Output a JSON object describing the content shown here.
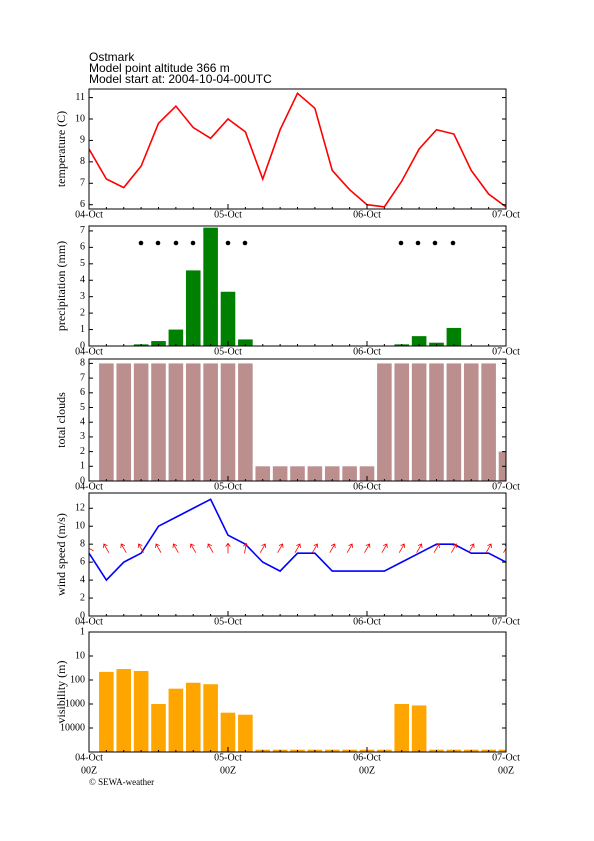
{
  "header": {
    "station": "Ostmark",
    "altitude": "Model point altitude  366 m",
    "model_start": "Model start at: 2004-10-04-00UTC"
  },
  "chart_data": [
    {
      "type": "line",
      "y_label": "temperature (C)",
      "categories": [
        "04-Oct",
        null,
        null,
        null,
        null,
        null,
        null,
        null,
        "05-Oct",
        null,
        null,
        null,
        null,
        null,
        null,
        null,
        "06-Oct",
        null,
        null,
        null,
        null,
        null,
        null,
        null,
        "07-Oct"
      ],
      "values": [
        8.6,
        7.2,
        6.8,
        7.8,
        9.8,
        10.6,
        9.6,
        9.1,
        10.0,
        9.4,
        7.2,
        9.5,
        11.2,
        10.5,
        7.6,
        6.7,
        6.0,
        5.9,
        7.1,
        8.6,
        9.5,
        9.3,
        7.6,
        6.5,
        5.9
      ],
      "color": "#ff0000",
      "ylim": [
        5.8,
        11.4
      ],
      "yticks": [
        6,
        7,
        8,
        9,
        10,
        11
      ]
    },
    {
      "type": "bar",
      "y_label": "precipitation (mm)",
      "categories": [
        "04-Oct",
        null,
        null,
        null,
        null,
        null,
        null,
        null,
        "05-Oct",
        null,
        null,
        null,
        null,
        null,
        null,
        null,
        "06-Oct",
        null,
        null,
        null,
        null,
        null,
        null,
        null,
        "07-Oct"
      ],
      "values": [
        0,
        0,
        0,
        0.1,
        0.3,
        1.0,
        4.6,
        7.2,
        3.3,
        0.4,
        0,
        0,
        0,
        0,
        0,
        0,
        0,
        0,
        0.1,
        0.6,
        0.2,
        1.1,
        0,
        0,
        0
      ],
      "color": "#008000",
      "ylim": [
        0,
        7.3
      ],
      "yticks": [
        0,
        1,
        2,
        3,
        4,
        5,
        6,
        7
      ]
    },
    {
      "type": "bar",
      "y_label": "total clouds",
      "categories": [
        "04-Oct",
        null,
        null,
        null,
        null,
        null,
        null,
        null,
        "05-Oct",
        null,
        null,
        null,
        null,
        null,
        null,
        null,
        "06-Oct",
        null,
        null,
        null,
        null,
        null,
        null,
        null,
        "07-Oct"
      ],
      "values": [
        0,
        8,
        8,
        8,
        8,
        8,
        8,
        8,
        8,
        8,
        1,
        1,
        1,
        1,
        1,
        1,
        1,
        8,
        8,
        8,
        8,
        8,
        8,
        8,
        2
      ],
      "color": "#bc8f8f",
      "ylim": [
        0,
        8.3
      ],
      "yticks": [
        0,
        1,
        2,
        3,
        4,
        5,
        6,
        7,
        8
      ]
    },
    {
      "type": "line",
      "y_label": "wind speed (m/s)",
      "categories": [
        "04-Oct",
        null,
        null,
        null,
        null,
        null,
        null,
        null,
        "05-Oct",
        null,
        null,
        null,
        null,
        null,
        null,
        null,
        "06-Oct",
        null,
        null,
        null,
        null,
        null,
        null,
        null,
        "07-Oct"
      ],
      "values": [
        7,
        4,
        6,
        7,
        10,
        11,
        12,
        13,
        9,
        8,
        6,
        5,
        7,
        7,
        5,
        5,
        5,
        5,
        6,
        7,
        8,
        8,
        7,
        7,
        6
      ],
      "color": "#0000ff",
      "ylim": [
        0,
        13.7
      ],
      "yticks": [
        0,
        2,
        4,
        6,
        8,
        10,
        12
      ],
      "wind_direction": [
        300,
        330,
        330,
        330,
        330,
        330,
        330,
        330,
        0,
        10,
        30,
        30,
        30,
        30,
        30,
        30,
        30,
        30,
        30,
        30,
        30,
        30,
        30,
        30,
        30
      ],
      "arrow_color": "#ff0000"
    },
    {
      "type": "bar",
      "y_label": "visibility (m)",
      "categories": [
        "04-Oct",
        null,
        null,
        null,
        null,
        null,
        null,
        null,
        "05-Oct",
        null,
        null,
        null,
        null,
        null,
        null,
        null,
        "06-Oct",
        null,
        null,
        null,
        null,
        null,
        null,
        null,
        "07-Oct"
      ],
      "values": [
        null,
        46,
        35,
        42,
        1000,
        230,
        130,
        150,
        2300,
        2800,
        80000,
        80000,
        80000,
        80000,
        80000,
        80000,
        80000,
        80000,
        1000,
        1150,
        80000,
        80000,
        80000,
        80000,
        80000
      ],
      "color": "#ffa500",
      "log_scale": true,
      "y_inverted": true,
      "ylim": [
        1,
        100000
      ],
      "yticks": [
        1,
        10,
        100,
        1000,
        10000
      ],
      "x_sublabel": "00Z"
    }
  ],
  "credit": "© SEWA-weather"
}
